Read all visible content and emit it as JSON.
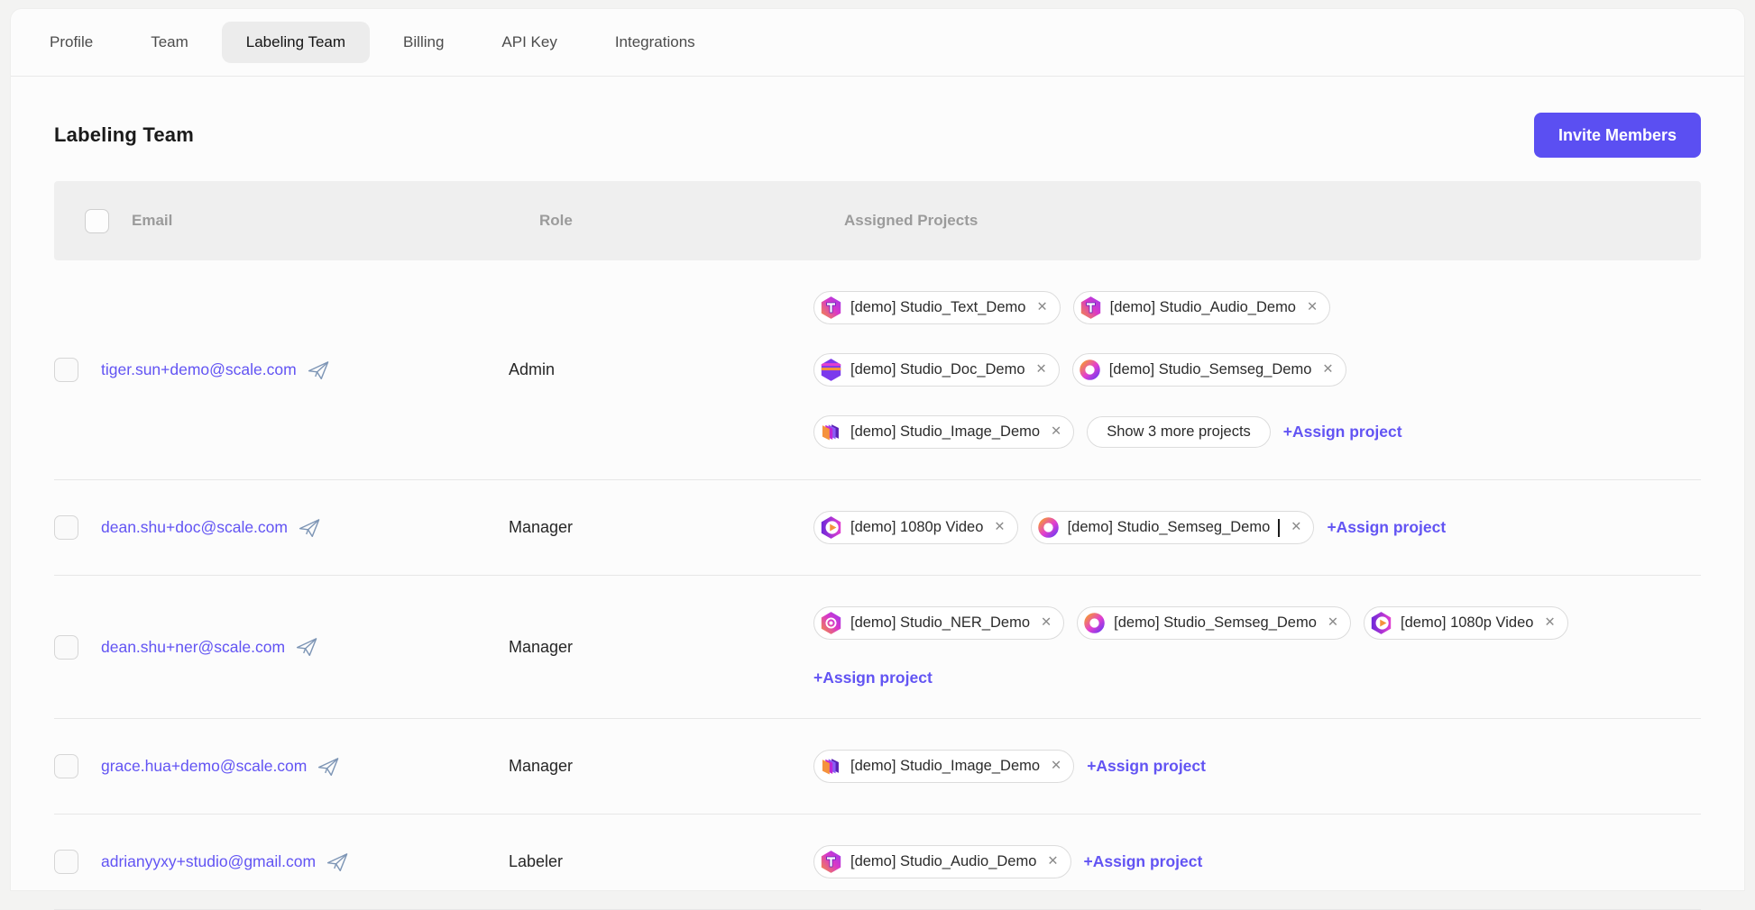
{
  "colors": {
    "accent": "#6254f3",
    "invite_button_bg": "#5b4ff2",
    "tab_active_bg": "#ececec"
  },
  "tabs": [
    {
      "id": "profile",
      "label": "Profile",
      "active": false
    },
    {
      "id": "team",
      "label": "Team",
      "active": false
    },
    {
      "id": "labeling-team",
      "label": "Labeling Team",
      "active": true
    },
    {
      "id": "billing",
      "label": "Billing",
      "active": false
    },
    {
      "id": "api-key",
      "label": "API Key",
      "active": false
    },
    {
      "id": "integrations",
      "label": "Integrations",
      "active": false
    }
  ],
  "page": {
    "title": "Labeling Team",
    "invite_button_label": "Invite Members"
  },
  "table": {
    "headers": {
      "email": "Email",
      "role": "Role",
      "projects": "Assigned Projects"
    },
    "icons": {
      "close_glyph": "✕"
    },
    "rows": [
      {
        "email": "tiger.sun+demo@scale.com",
        "role": "Admin",
        "projects": [
          {
            "label": "[demo] Studio_Text_Demo",
            "icon": "t-hex"
          },
          {
            "label": "[demo] Studio_Audio_Demo",
            "icon": "t-hex",
            "break_after": true
          },
          {
            "label": "[demo] Studio_Doc_Demo",
            "icon": "doc-hex"
          },
          {
            "label": "[demo] Studio_Semseg_Demo",
            "icon": "semseg-ring",
            "break_after": true
          },
          {
            "label": "[demo] Studio_Image_Demo",
            "icon": "image-stack"
          }
        ],
        "show_more_label": "Show 3 more projects",
        "assign_label": "+Assign project"
      },
      {
        "email": "dean.shu+doc@scale.com",
        "role": "Manager",
        "projects": [
          {
            "label": "[demo] 1080p Video",
            "icon": "video-hex"
          },
          {
            "label": "[demo] Studio_Semseg_Demo",
            "icon": "semseg-ring",
            "editing": true
          }
        ],
        "assign_label": "+Assign project"
      },
      {
        "email": "dean.shu+ner@scale.com",
        "role": "Manager",
        "projects": [
          {
            "label": "[demo] Studio_NER_Demo",
            "icon": "ner-hex"
          },
          {
            "label": "[demo] Studio_Semseg_Demo",
            "icon": "semseg-ring"
          },
          {
            "label": "[demo] 1080p Video",
            "icon": "video-hex",
            "break_after": true
          }
        ],
        "assign_label": "+Assign project"
      },
      {
        "email": "grace.hua+demo@scale.com",
        "role": "Manager",
        "projects": [
          {
            "label": "[demo] Studio_Image_Demo",
            "icon": "image-stack"
          }
        ],
        "assign_label": "+Assign project"
      },
      {
        "email": "adrianyyxy+studio@gmail.com",
        "role": "Labeler",
        "projects": [
          {
            "label": "[demo] Studio_Audio_Demo",
            "icon": "t-hex"
          }
        ],
        "assign_label": "+Assign project"
      }
    ]
  }
}
